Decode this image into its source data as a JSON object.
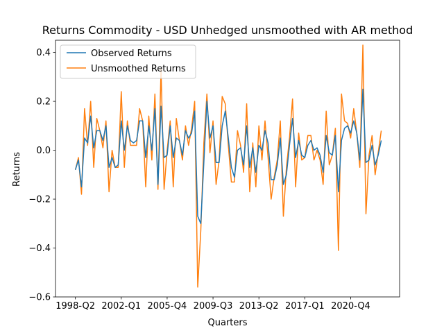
{
  "chart_data": {
    "type": "line",
    "title": "Returns Commodity - USD Unhedged unsmoothed with AR method",
    "xlabel": "Quarters",
    "ylabel": "Returns",
    "ylim": [
      -0.6,
      0.45
    ],
    "yticks": [
      -0.6,
      -0.4,
      -0.2,
      0.0,
      0.2,
      0.4
    ],
    "ytick_labels": [
      "−0.6",
      "−0.4",
      "−0.2",
      "0.0",
      "0.2",
      "0.4"
    ],
    "xticks": [
      0,
      15,
      30,
      45,
      60,
      75,
      90
    ],
    "xtick_labels": [
      "1998-Q2",
      "2002-Q1",
      "2005-Q4",
      "2009-Q3",
      "2013-Q2",
      "2017-Q1",
      "2020-Q4"
    ],
    "xlim": [
      -6.5,
      106
    ],
    "legend": {
      "position": "upper-left"
    },
    "grid": false,
    "series": [
      {
        "name": "Observed Returns",
        "color": "#1f77b4",
        "values": [
          -0.08,
          -0.04,
          -0.15,
          0.05,
          0.03,
          0.14,
          0.01,
          0.08,
          0.08,
          0.04,
          0.1,
          -0.07,
          -0.03,
          -0.07,
          -0.06,
          0.12,
          0.0,
          0.1,
          0.04,
          0.03,
          0.04,
          0.12,
          0.12,
          -0.03,
          0.1,
          0.0,
          0.17,
          -0.14,
          0.18,
          -0.03,
          -0.02,
          0.1,
          -0.03,
          0.05,
          0.04,
          -0.02,
          0.08,
          0.05,
          0.07,
          0.16,
          -0.27,
          -0.3,
          -0.05,
          0.2,
          0.05,
          0.1,
          -0.05,
          -0.05,
          0.1,
          0.16,
          0.05,
          -0.07,
          -0.11,
          0.0,
          0.01,
          -0.06,
          0.1,
          -0.07,
          0.01,
          -0.09,
          0.02,
          0.0,
          0.08,
          0.03,
          -0.12,
          -0.12,
          -0.06,
          0.05,
          -0.14,
          -0.1,
          0.02,
          0.13,
          -0.03,
          0.04,
          -0.02,
          -0.03,
          0.02,
          0.04,
          0.0,
          0.01,
          -0.02,
          -0.09,
          0.06,
          -0.01,
          -0.02,
          0.06,
          -0.17,
          0.04,
          0.09,
          0.1,
          0.07,
          0.12,
          0.07,
          -0.04,
          0.25,
          -0.05,
          -0.04,
          0.02,
          -0.06,
          -0.02,
          0.04
        ],
        "values_name": "observed"
      },
      {
        "name": "Unsmoothed Returns",
        "color": "#ff7f0e",
        "values": [
          -0.08,
          -0.03,
          -0.18,
          0.17,
          0.02,
          0.2,
          -0.07,
          0.13,
          0.08,
          0.01,
          0.12,
          -0.17,
          0.0,
          -0.07,
          -0.07,
          0.24,
          -0.07,
          0.12,
          0.02,
          0.02,
          0.02,
          0.17,
          0.12,
          -0.15,
          0.14,
          -0.04,
          0.23,
          -0.16,
          0.33,
          -0.16,
          0.0,
          0.12,
          -0.15,
          0.13,
          0.04,
          -0.04,
          0.1,
          0.02,
          0.09,
          0.2,
          -0.56,
          -0.33,
          0.03,
          0.23,
          -0.01,
          0.12,
          -0.14,
          -0.04,
          0.22,
          0.19,
          0.02,
          -0.13,
          -0.13,
          0.08,
          0.02,
          -0.09,
          0.19,
          -0.17,
          0.03,
          -0.15,
          0.1,
          -0.04,
          0.12,
          -0.03,
          -0.2,
          -0.11,
          -0.04,
          0.12,
          -0.27,
          -0.07,
          0.05,
          0.21,
          -0.15,
          0.07,
          -0.04,
          -0.03,
          0.06,
          0.06,
          -0.04,
          0.0,
          -0.04,
          -0.14,
          0.16,
          -0.06,
          -0.02,
          0.09,
          -0.41,
          0.23,
          0.12,
          0.11,
          0.05,
          0.17,
          0.07,
          -0.07,
          0.43,
          -0.26,
          -0.02,
          0.06,
          -0.1,
          -0.01,
          0.08
        ]
      }
    ]
  }
}
